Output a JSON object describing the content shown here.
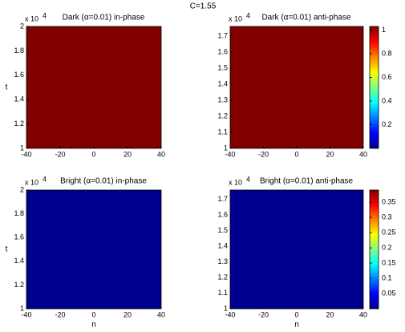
{
  "title": "C=1.55",
  "chart_data": [
    {
      "type": "heatmap",
      "title": "Dark (α=0.01) in-phase",
      "ylabel": "t",
      "y_multiplier": "x 10",
      "y_multiplier_exp": "4",
      "xlim": [
        -40,
        40
      ],
      "xticks": [
        -40,
        -20,
        0,
        20,
        40
      ],
      "ylim": [
        1,
        2
      ],
      "yticks": [
        1,
        1.2,
        1.4,
        1.6,
        1.8,
        2
      ]
    },
    {
      "type": "heatmap",
      "title": "Dark (α=0.01) anti-phase",
      "y_multiplier": "x 10",
      "y_multiplier_exp": "4",
      "xlim": [
        -40,
        40
      ],
      "xticks": [
        -40,
        -20,
        0,
        20,
        40
      ],
      "ylim": [
        1,
        1.76
      ],
      "yticks": [
        1,
        1.1,
        1.2,
        1.3,
        1.4,
        1.5,
        1.6,
        1.7
      ],
      "clim": [
        0,
        1.03
      ],
      "cticks": [
        0.2,
        0.4,
        0.6,
        0.8,
        1
      ]
    },
    {
      "type": "heatmap",
      "title": "Bright (α=0.01) in-phase",
      "xlabel": "n",
      "ylabel": "t",
      "y_multiplier": "x 10",
      "y_multiplier_exp": "4",
      "xlim": [
        -40,
        40
      ],
      "xticks": [
        -40,
        -20,
        0,
        20,
        40
      ],
      "ylim": [
        1,
        2
      ],
      "yticks": [
        1,
        1.2,
        1.4,
        1.6,
        1.8,
        2
      ]
    },
    {
      "type": "heatmap",
      "title": "Bright (α=0.01) anti-phase",
      "xlabel": "n",
      "y_multiplier": "x 10",
      "y_multiplier_exp": "4",
      "xlim": [
        -40,
        40
      ],
      "xticks": [
        -40,
        -20,
        0,
        20,
        40
      ],
      "ylim": [
        1,
        1.76
      ],
      "yticks": [
        1,
        1.1,
        1.2,
        1.3,
        1.4,
        1.5,
        1.6,
        1.7
      ],
      "clim": [
        0,
        0.39
      ],
      "cticks": [
        0.05,
        0.1,
        0.15,
        0.2,
        0.25,
        0.3,
        0.35
      ]
    }
  ]
}
